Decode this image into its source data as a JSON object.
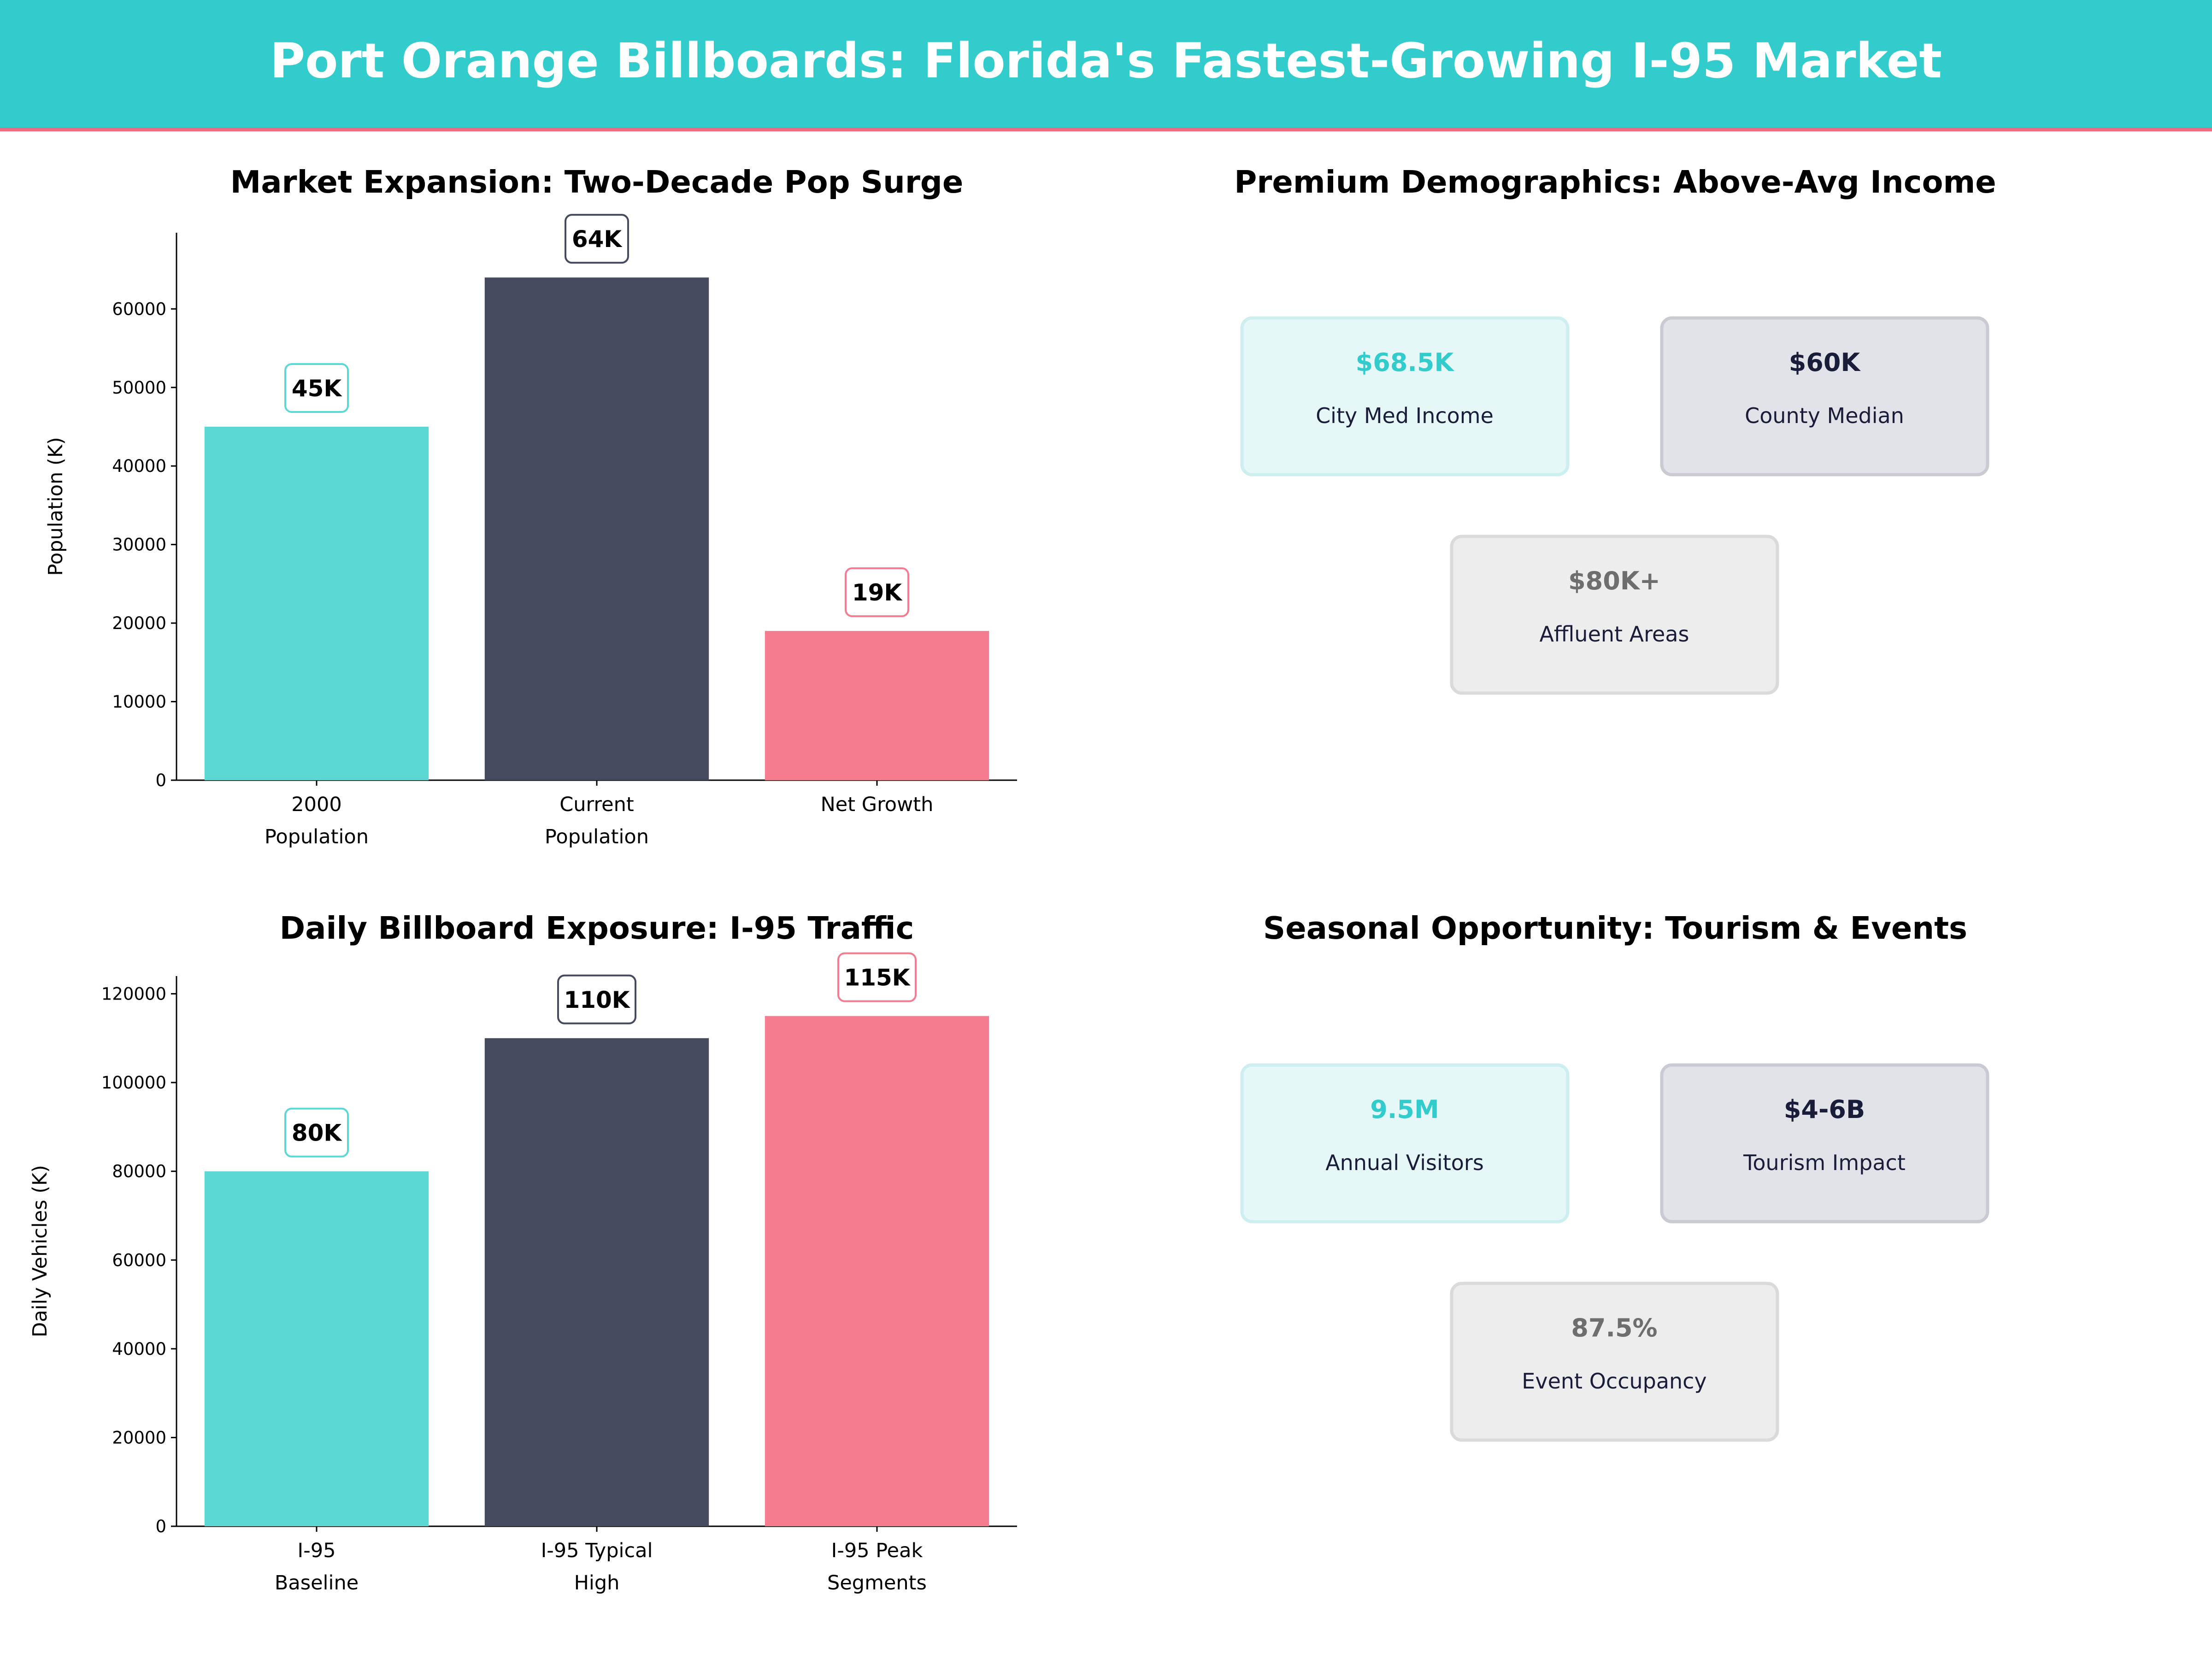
{
  "header": {
    "title": "Port Orange Billboards: Florida's Fastest-Growing I-95 Market"
  },
  "colors": {
    "header_bg": "#33CCCC",
    "header_line": "#F06A80",
    "teal": "#5CD8D4",
    "navy": "#464A5F",
    "pink": "#F57C8F"
  },
  "chart_data": [
    {
      "type": "bar",
      "title": "Market Expansion: Two-Decade Pop Surge",
      "ylabel": "Population (K)",
      "categories": [
        [
          "2000",
          "Population"
        ],
        [
          "Current",
          "Population"
        ],
        [
          "Net Growth"
        ]
      ],
      "values": [
        45000,
        64000,
        19000
      ],
      "data_labels": [
        "45K",
        "64K",
        "19K"
      ],
      "bar_colors": [
        "#5CD8D4",
        "#464A5F",
        "#F57C8F"
      ],
      "ylim": [
        0,
        69700
      ],
      "yticks": [
        0,
        10000,
        20000,
        30000,
        40000,
        50000,
        60000
      ],
      "grid": false
    },
    {
      "type": "bar",
      "title": "Daily Billboard Exposure: I-95 Traffic",
      "ylabel": "Daily Vehicles (K)",
      "categories": [
        [
          "I-95",
          "Baseline"
        ],
        [
          "I-95 Typical",
          "High"
        ],
        [
          "I-95 Peak",
          "Segments"
        ]
      ],
      "values": [
        80000,
        110000,
        115000
      ],
      "data_labels": [
        "80K",
        "110K",
        "115K"
      ],
      "bar_colors": [
        "#5CD8D4",
        "#464A5F",
        "#F57C8F"
      ],
      "ylim": [
        0,
        124000
      ],
      "yticks": [
        0,
        20000,
        40000,
        60000,
        80000,
        100000,
        120000
      ],
      "grid": false
    }
  ],
  "panels": [
    {
      "title": "Premium Demographics: Above-Avg Income",
      "cards": [
        {
          "value": "$68.5K",
          "label": "City Med Income",
          "value_color": "#33CCCC",
          "fill": "#E5F7F7",
          "stroke": "#CDEFF0"
        },
        {
          "value": "$60K",
          "label": "County Median",
          "value_color": "#1A1D3A",
          "fill": "#E2E3E8",
          "stroke": "#C9CAD2"
        },
        {
          "value": "$80K+",
          "label": "Affluent Areas",
          "value_color": "#6E6E6E",
          "fill": "#EDEDED",
          "stroke": "#DADADA"
        }
      ]
    },
    {
      "title": "Seasonal Opportunity: Tourism & Events",
      "cards": [
        {
          "value": "9.5M",
          "label": "Annual Visitors",
          "value_color": "#33CCCC",
          "fill": "#E5F7F7",
          "stroke": "#CDEFF0"
        },
        {
          "value": "$4-6B",
          "label": "Tourism Impact",
          "value_color": "#1A1D3A",
          "fill": "#E2E3E8",
          "stroke": "#C9CAD2"
        },
        {
          "value": "87.5%",
          "label": "Event Occupancy",
          "value_color": "#6E6E6E",
          "fill": "#EDEDED",
          "stroke": "#DADADA"
        }
      ]
    }
  ]
}
